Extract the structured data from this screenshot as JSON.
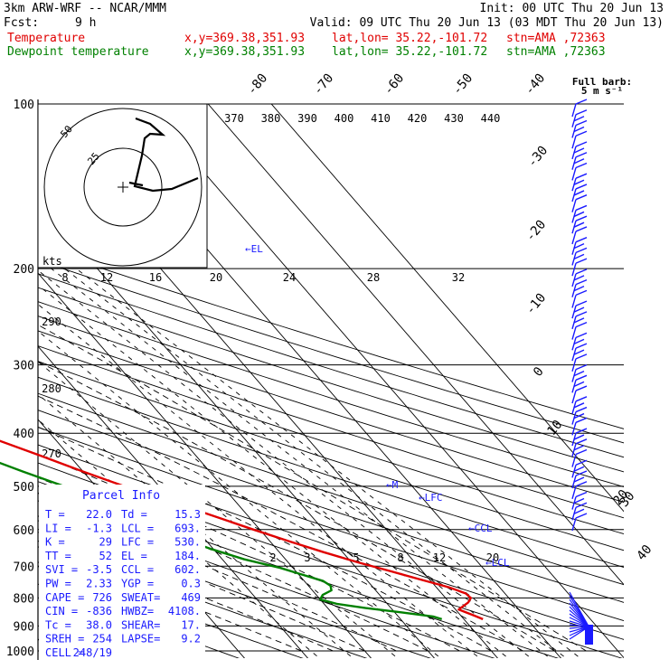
{
  "header": {
    "model": "3km ARW-WRF -- NCAR/MMM",
    "init": "Init: 00 UTC Thu 20 Jun 13",
    "fcst_label": "Fcst:",
    "fcst_value": "9 h",
    "valid": "Valid: 09 UTC Thu 20 Jun 13 (03 MDT Thu 20 Jun 13)"
  },
  "legend": [
    {
      "name": "Temperature",
      "color": "#e00000",
      "xy": "x,y=369.38,351.93",
      "latlon": "lat,lon= 35.22,-101.72",
      "stn": "stn=AMA ,72363"
    },
    {
      "name": "Dewpoint temperature",
      "color": "#008000",
      "xy": "x,y=369.38,351.93",
      "latlon": "lat,lon= 35.22,-101.72",
      "stn": "stn=AMA ,72363"
    }
  ],
  "wind_label": {
    "line1": "Full barb:",
    "line2": "5 m s⁻¹"
  },
  "hodograph": {
    "units": "kts",
    "ring_labels": [
      "25",
      "50"
    ]
  },
  "parcel_info": {
    "title": "Parcel Info",
    "rows": [
      [
        "T =",
        "22.0",
        "Td =",
        "15.3"
      ],
      [
        "LI =",
        "-1.3",
        "LCL =",
        "693."
      ],
      [
        "K =",
        "29",
        "LFC =",
        "530."
      ],
      [
        "TT =",
        "52",
        "EL =",
        "184."
      ],
      [
        "SVI =",
        "-3.5",
        "CCL =",
        "602."
      ],
      [
        "PW =",
        "2.33",
        "YGP =",
        "0.3"
      ],
      [
        "CAPE =",
        "726",
        "SWEAT=",
        "469"
      ],
      [
        "CIN =",
        "-836",
        "HWBZ=",
        "4108."
      ],
      [
        "Tc =",
        "38.0",
        "SHEAR=",
        "17."
      ],
      [
        "SREH =",
        "254",
        "LAPSE=",
        "9.2"
      ],
      [
        "CELL =",
        "248/19",
        "",
        ""
      ]
    ]
  },
  "chart_data": {
    "type": "line",
    "subtype": "skew-T log-P",
    "y_axis": {
      "label": "",
      "unit": "hPa",
      "scale": "log",
      "range": [
        1000,
        100
      ],
      "ticks": [
        100,
        200,
        300,
        400,
        500,
        600,
        700,
        800,
        900,
        1000
      ]
    },
    "isotherm_labels": [
      -80,
      -70,
      -60,
      -50,
      -40,
      -30,
      -20,
      -10,
      0,
      10,
      20,
      30,
      40
    ],
    "theta_labels_top": [
      370,
      380,
      390,
      400,
      410,
      420,
      430,
      440
    ],
    "theta_labels_left": [
      290,
      280,
      270
    ],
    "mixing_ratio_labels": [
      2,
      3,
      5,
      8,
      12,
      20
    ],
    "mixing_ratio_labels_upper": [
      8,
      12,
      16,
      20,
      24,
      28,
      32
    ],
    "annotations": [
      "EL",
      "M",
      "LFC",
      "CCL",
      "LCL"
    ],
    "series": [
      {
        "name": "Temperature",
        "color": "#e00000",
        "pressure": [
          875,
          860,
          840,
          815,
          800,
          785,
          765,
          740,
          715,
          690,
          660,
          630,
          600,
          570,
          545,
          520,
          500,
          470,
          440,
          410,
          380,
          350,
          320,
          295,
          270,
          245,
          225,
          215,
          205,
          195,
          185,
          175,
          168,
          160,
          150,
          140,
          130,
          120,
          110,
          100
        ],
        "temp": [
          23.0,
          22.0,
          20.5,
          23.0,
          24.0,
          23.8,
          22.0,
          18.5,
          15.0,
          11.2,
          7.0,
          3.0,
          -1.0,
          -5.0,
          -8.5,
          -12.5,
          -15.5,
          -20.0,
          -24.5,
          -29.5,
          -34.5,
          -40.0,
          -45.5,
          -50.5,
          -55.5,
          -60.5,
          -64.8,
          -67.3,
          -70.0,
          -72.5,
          -74.5,
          -74.5,
          -73.0,
          -70.0,
          -67.0,
          -65.0,
          -64.8,
          -66.0,
          -67.5,
          -66.5
        ]
      },
      {
        "name": "Dewpoint temperature",
        "color": "#008000",
        "pressure": [
          875,
          865,
          850,
          835,
          820,
          805,
          790,
          775,
          760,
          745,
          725,
          705,
          680,
          650,
          620,
          590,
          560,
          530,
          500,
          470,
          440,
          420,
          405,
          395,
          380,
          365,
          350,
          330,
          310,
          295,
          280,
          265,
          250,
          235,
          220,
          205,
          190,
          175,
          160,
          145,
          130,
          115,
          100
        ],
        "temp": [
          16.5,
          15.5,
          11.0,
          6.0,
          2.0,
          0.0,
          1.0,
          3.0,
          3.5,
          3.0,
          0.5,
          -2.0,
          -6.5,
          -10.5,
          -14.0,
          -16.5,
          -19.0,
          -21.5,
          -25.0,
          -29.5,
          -34.0,
          -39.0,
          -45.0,
          -50.0,
          -57.0,
          -63.0,
          -65.0,
          -63.0,
          -62.0,
          -62.5,
          -64.0,
          -66.5,
          -69.0,
          -71.0,
          -73.0,
          -75.0,
          -79.0,
          -84.0,
          -88.0,
          -89.5,
          -89.0,
          -87.0,
          -85.0
        ]
      }
    ],
    "wind_barbs": {
      "count": 40,
      "unit": "kt"
    }
  }
}
